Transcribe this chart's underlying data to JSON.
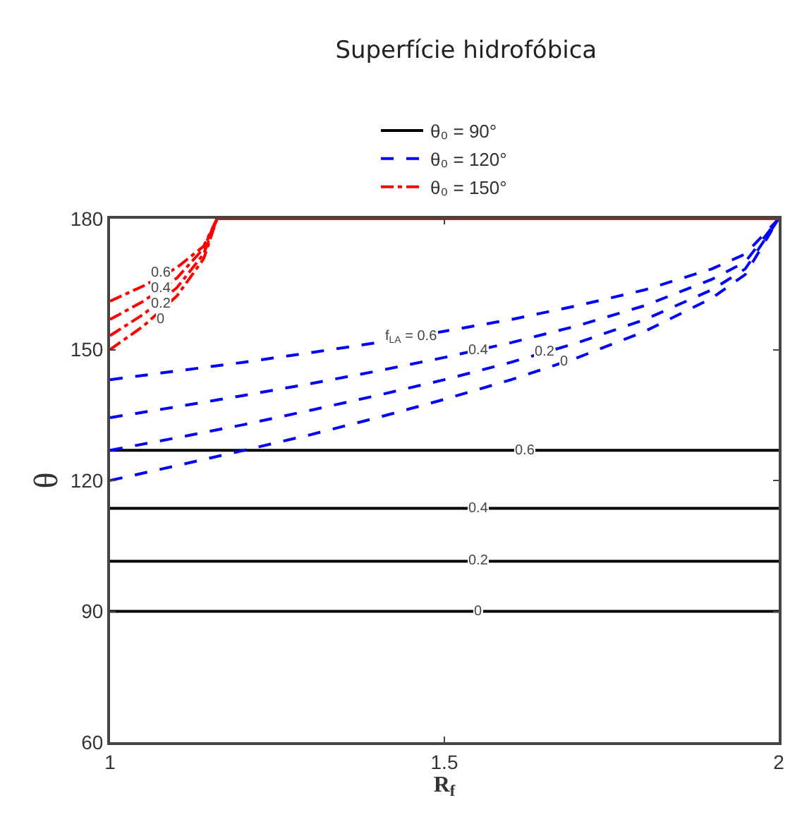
{
  "chart_data": {
    "type": "line",
    "title": "Superfície hidrofóbica",
    "xlabel": "R$_{f}$",
    "ylabel": "θ",
    "xlim": [
      1,
      2
    ],
    "xticks": [
      1,
      1.5,
      2
    ],
    "ylim": [
      60,
      180
    ],
    "yticks": [
      60,
      90,
      120,
      150,
      180
    ],
    "legend": "top",
    "marker": "none",
    "series": [
      {
        "name": "θ₀ = 90°",
        "color": "#000000",
        "line_style": "solid",
        "x": [
          1,
          2
        ],
        "values": [
          90,
          90
        ]
      },
      {
        "color": "#000000",
        "line_style": "solid",
        "x": [
          1,
          2
        ],
        "values": [
          101.5,
          101.5
        ]
      },
      {
        "color": "#000000",
        "line_style": "solid",
        "x": [
          1,
          2
        ],
        "values": [
          113.6,
          113.6
        ]
      },
      {
        "color": "#000000",
        "line_style": "solid",
        "x": [
          1,
          2
        ],
        "values": [
          126.9,
          126.9
        ]
      },
      {
        "name": "θ₀ = 120°",
        "color": "#0000ff",
        "line_style": "dashed",
        "x": [
          1,
          1.1,
          1.2,
          1.3,
          1.4,
          1.5,
          1.6,
          1.7,
          1.8,
          1.9,
          1.95,
          2
        ],
        "values": [
          120,
          123.4,
          126.9,
          130.5,
          134.4,
          138.6,
          143.1,
          148.2,
          154.2,
          161.8,
          167.2,
          180
        ]
      },
      {
        "color": "#0000ff",
        "line_style": "dashed",
        "x": [
          1,
          1.1,
          1.2,
          1.3,
          1.4,
          1.5,
          1.6,
          1.7,
          1.8,
          1.9,
          1.95,
          2
        ],
        "values": [
          126.9,
          129.8,
          132.8,
          136.1,
          139.5,
          143.1,
          147.1,
          151.6,
          156.9,
          163.7,
          168.5,
          180
        ]
      },
      {
        "color": "#0000ff",
        "line_style": "dashed",
        "x": [
          1,
          1.1,
          1.2,
          1.3,
          1.4,
          1.5,
          1.6,
          1.7,
          1.8,
          1.9,
          1.95,
          2
        ],
        "values": [
          134.4,
          136.9,
          139.5,
          142.2,
          145.1,
          148.2,
          151.6,
          155.5,
          160.1,
          166.1,
          170.1,
          180
        ]
      },
      {
        "color": "#0000ff",
        "line_style": "dashed",
        "x": [
          1,
          1.1,
          1.2,
          1.3,
          1.4,
          1.5,
          1.6,
          1.7,
          1.8,
          1.9,
          1.95,
          2
        ],
        "values": [
          143.1,
          145.1,
          147.1,
          149.3,
          151.6,
          154.2,
          156.9,
          160.1,
          163.7,
          168.5,
          171.9,
          180
        ]
      },
      {
        "name": "θ₀ = 150°",
        "color": "#ff0000",
        "line_style": "dashdot",
        "x": [
          1,
          1.05,
          1.1,
          1.14,
          1.16,
          2
        ],
        "values": [
          150,
          155.4,
          162.3,
          170.8,
          180,
          180
        ]
      },
      {
        "color": "#ff0000",
        "line_style": "dashdot",
        "x": [
          1,
          1.05,
          1.1,
          1.14,
          1.16,
          2
        ],
        "values": [
          153.2,
          158.1,
          164.2,
          171.9,
          180,
          180
        ]
      },
      {
        "color": "#ff0000",
        "line_style": "dashdot",
        "x": [
          1,
          1.05,
          1.1,
          1.14,
          1.16,
          2
        ],
        "values": [
          156.9,
          161.1,
          166.4,
          173.2,
          180,
          180
        ]
      },
      {
        "color": "#ff0000",
        "line_style": "dashdot",
        "x": [
          1,
          1.05,
          1.1,
          1.14,
          1.16,
          2
        ],
        "values": [
          161.1,
          164.6,
          168.8,
          173.7,
          180,
          180
        ]
      }
    ],
    "annotations": [
      {
        "text": "0",
        "x": 1.55,
        "y": 90
      },
      {
        "text": "0.2",
        "x": 1.55,
        "y": 101.5
      },
      {
        "text": "0.4",
        "x": 1.55,
        "y": 113.6
      },
      {
        "text": "0.6",
        "x": 1.62,
        "y": 126.9
      },
      {
        "text": "f$_{LA}$ = 0.6",
        "x": 1.45,
        "y": 152.9
      },
      {
        "text": "0.4",
        "x": 1.55,
        "y": 149.9
      },
      {
        "text": "0.2",
        "x": 1.65,
        "y": 149.3
      },
      {
        "text": "0",
        "x": 1.68,
        "y": 147.1
      },
      {
        "text": "0.6",
        "x": 1.075,
        "y": 167.5
      },
      {
        "text": "0.4",
        "x": 1.075,
        "y": 164
      },
      {
        "text": "0.2",
        "x": 1.075,
        "y": 160.5
      },
      {
        "text": "0",
        "x": 1.075,
        "y": 157
      }
    ]
  }
}
